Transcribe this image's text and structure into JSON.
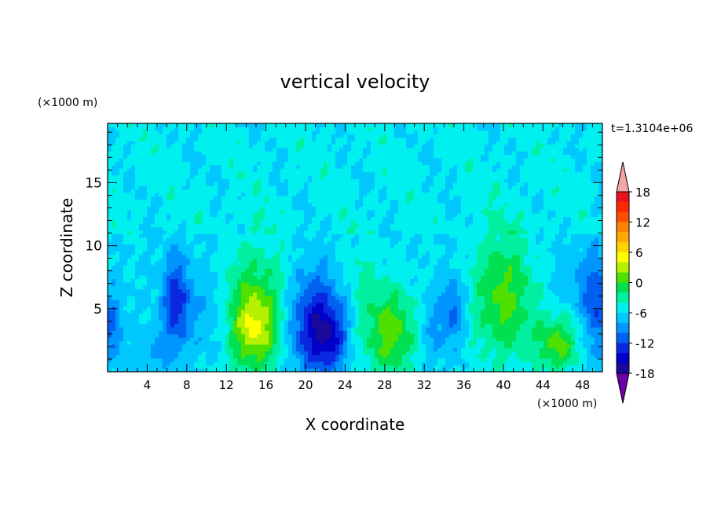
{
  "chart_data": {
    "type": "heatmap",
    "title": "vertical velocity",
    "xlabel": "X coordinate",
    "ylabel": "Z coordinate",
    "x_unit": "(×1000 m)",
    "y_unit": "(×1000 m)",
    "time_label": "t=1.3104e+06",
    "xlim": [
      0,
      50
    ],
    "ylim": [
      0,
      19.7
    ],
    "x_ticks": [
      4,
      8,
      12,
      16,
      20,
      24,
      28,
      32,
      36,
      40,
      44,
      48
    ],
    "y_ticks": [
      5,
      10,
      15
    ],
    "colorbar": {
      "min": -21,
      "max": 21,
      "step": 3,
      "tick_values": [
        18,
        12,
        6,
        0,
        -6,
        -12,
        -18
      ],
      "colors": [
        "#6a00a8",
        "#1a0a9a",
        "#0000c8",
        "#0a28e0",
        "#0060f0",
        "#0096ff",
        "#00c8ff",
        "#00f0f0",
        "#00f0a0",
        "#00e050",
        "#50e000",
        "#b4f000",
        "#ffff00",
        "#ffd200",
        "#ffaa00",
        "#ff8200",
        "#ff5000",
        "#ff2800",
        "#e6141e",
        "#f4a6a6"
      ]
    },
    "features": [
      {
        "x": 15.0,
        "z": 4.5,
        "w": 10,
        "sx": 2.4,
        "sz": 3.6
      },
      {
        "x": 14.8,
        "z": 3.5,
        "w": 7,
        "sx": 1.3,
        "sz": 1.8
      },
      {
        "x": 28.5,
        "z": 3.2,
        "w": 11,
        "sx": 2.0,
        "sz": 2.4
      },
      {
        "x": 40.0,
        "z": 6.0,
        "w": 10,
        "sx": 2.2,
        "sz": 3.5
      },
      {
        "x": 45.5,
        "z": 2.2,
        "w": 10,
        "sx": 1.6,
        "sz": 1.6
      },
      {
        "x": 21.0,
        "z": 3.7,
        "w": -14,
        "sx": 2.0,
        "sz": 2.8
      },
      {
        "x": 22.5,
        "z": 2.5,
        "w": -6,
        "sx": 1.0,
        "sz": 1.5
      },
      {
        "x": 7.0,
        "z": 5.5,
        "w": -11,
        "sx": 1.1,
        "sz": 2.5
      },
      {
        "x": 35.0,
        "z": 5.0,
        "w": -7,
        "sx": 0.8,
        "sz": 1.8
      },
      {
        "x": 49.5,
        "z": 5.0,
        "w": -8,
        "sx": 1.0,
        "sz": 3.0
      },
      {
        "x": 0.5,
        "z": 3.5,
        "w": -7,
        "sx": 0.8,
        "sz": 2.0
      },
      {
        "x": 10.5,
        "z": 4.5,
        "w": -4,
        "sx": 1.0,
        "sz": 2.5
      },
      {
        "x": 33.0,
        "z": 3.5,
        "w": -4,
        "sx": 1.2,
        "sz": 2.0
      },
      {
        "x": 25.5,
        "z": 8.0,
        "w": 3,
        "sx": 1.5,
        "sz": 2.0
      },
      {
        "x": 47.5,
        "z": 7.0,
        "w": -3,
        "sx": 1.5,
        "sz": 2.0
      },
      {
        "x": 5.0,
        "z": 1.5,
        "w": -3,
        "sx": 1.5,
        "sz": 1.2
      }
    ]
  }
}
